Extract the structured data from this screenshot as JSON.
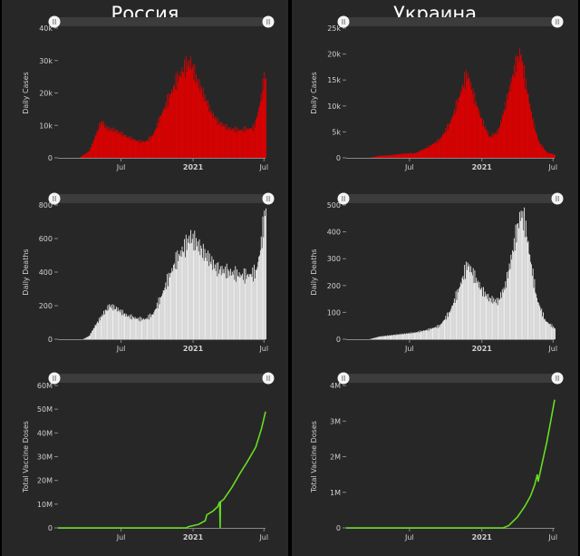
{
  "countries": [
    {
      "name": "Россия"
    },
    {
      "name": "Украина"
    }
  ],
  "x_ticks": [
    "Jul",
    "2021",
    "Jul"
  ],
  "colors": {
    "cases": "#e00000",
    "deaths": "#ececec",
    "vaccine": "#66dd22",
    "panel": "#272727",
    "slider": "#3c3c3c"
  },
  "chart_data": [
    {
      "type": "bar",
      "country": "Россия",
      "ylabel": "Daily Cases",
      "ylim": [
        0,
        40000
      ],
      "y_ticks": [
        0,
        10000,
        20000,
        30000,
        40000
      ],
      "y_tick_labels": [
        "0",
        "10k",
        "20k",
        "30k",
        "40k"
      ],
      "x_range": [
        "2020-01-22",
        "2021-07-05"
      ],
      "series": [
        {
          "values": [
            [
              "2020-03-15",
              0
            ],
            [
              "2020-04-10",
              2000
            ],
            [
              "2020-04-25",
              6500
            ],
            [
              "2020-05-08",
              10500
            ],
            [
              "2020-05-12",
              11200
            ],
            [
              "2020-05-25",
              9000
            ],
            [
              "2020-06-15",
              8500
            ],
            [
              "2020-07-15",
              6500
            ],
            [
              "2020-08-15",
              5000
            ],
            [
              "2020-09-01",
              5000
            ],
            [
              "2020-09-20",
              7000
            ],
            [
              "2020-10-10",
              13000
            ],
            [
              "2020-11-01",
              19000
            ],
            [
              "2020-11-20",
              24000
            ],
            [
              "2020-12-10",
              28000
            ],
            [
              "2020-12-24",
              29500
            ],
            [
              "2021-01-10",
              24000
            ],
            [
              "2021-01-25",
              20000
            ],
            [
              "2021-02-15",
              14000
            ],
            [
              "2021-03-05",
              11000
            ],
            [
              "2021-04-01",
              9000
            ],
            [
              "2021-05-01",
              8500
            ],
            [
              "2021-05-25",
              9000
            ],
            [
              "2021-06-05",
              9500
            ],
            [
              "2021-06-15",
              14000
            ],
            [
              "2021-06-25",
              20000
            ],
            [
              "2021-07-01",
              25000
            ],
            [
              "2021-07-05",
              24500
            ]
          ]
        }
      ]
    },
    {
      "type": "bar",
      "country": "Россия",
      "ylabel": "Daily Deaths",
      "ylim": [
        0,
        800
      ],
      "y_ticks": [
        0,
        200,
        400,
        600,
        800
      ],
      "y_tick_labels": [
        "0",
        "200",
        "400",
        "600",
        "800"
      ],
      "x_range": [
        "2020-01-22",
        "2021-07-05"
      ],
      "series": [
        {
          "values": [
            [
              "2020-03-25",
              0
            ],
            [
              "2020-04-10",
              20
            ],
            [
              "2020-04-25",
              80
            ],
            [
              "2020-05-15",
              150
            ],
            [
              "2020-06-01",
              200
            ],
            [
              "2020-06-20",
              180
            ],
            [
              "2020-07-15",
              140
            ],
            [
              "2020-08-15",
              120
            ],
            [
              "2020-09-01",
              120
            ],
            [
              "2020-09-20",
              150
            ],
            [
              "2020-10-10",
              250
            ],
            [
              "2020-11-01",
              380
            ],
            [
              "2020-11-20",
              480
            ],
            [
              "2020-12-10",
              550
            ],
            [
              "2020-12-24",
              610
            ],
            [
              "2021-01-10",
              570
            ],
            [
              "2021-01-25",
              520
            ],
            [
              "2021-02-10",
              480
            ],
            [
              "2021-03-01",
              420
            ],
            [
              "2021-04-01",
              400
            ],
            [
              "2021-05-01",
              380
            ],
            [
              "2021-05-20",
              380
            ],
            [
              "2021-06-10",
              400
            ],
            [
              "2021-06-20",
              520
            ],
            [
              "2021-07-01",
              720
            ],
            [
              "2021-07-05",
              780
            ]
          ]
        }
      ]
    },
    {
      "type": "line",
      "country": "Россия",
      "ylabel": "Total Vaccine Doses",
      "ylim": [
        0,
        60000000
      ],
      "y_ticks": [
        0,
        10000000,
        20000000,
        30000000,
        40000000,
        50000000,
        60000000
      ],
      "y_tick_labels": [
        "0",
        "10M",
        "20M",
        "30M",
        "40M",
        "50M",
        "60M"
      ],
      "x_range": [
        "2020-01-22",
        "2021-07-05"
      ],
      "series": [
        {
          "values": [
            [
              "2020-01-22",
              0
            ],
            [
              "2020-12-15",
              0
            ],
            [
              "2020-12-20",
              500000
            ],
            [
              "2021-01-15",
              1500000
            ],
            [
              "2021-02-01",
              3000000
            ],
            [
              "2021-02-05",
              5500000
            ],
            [
              "2021-02-20",
              7000000
            ],
            [
              "2021-03-05",
              9000000
            ],
            [
              "2021-03-10",
              11000000
            ],
            [
              "2021-03-11",
              0
            ],
            [
              "2021-03-12",
              11000000
            ],
            [
              "2021-03-20",
              12000000
            ],
            [
              "2021-04-10",
              17000000
            ],
            [
              "2021-05-01",
              23000000
            ],
            [
              "2021-05-20",
              28000000
            ],
            [
              "2021-06-10",
              34000000
            ],
            [
              "2021-06-25",
              42000000
            ],
            [
              "2021-07-05",
              49000000
            ]
          ]
        }
      ]
    },
    {
      "type": "bar",
      "country": "Украина",
      "ylabel": "Daily Cases",
      "ylim": [
        0,
        25000
      ],
      "y_ticks": [
        0,
        5000,
        10000,
        15000,
        20000,
        25000
      ],
      "y_tick_labels": [
        "0",
        "5k",
        "10k",
        "15k",
        "20k",
        "25k"
      ],
      "x_range": [
        "2020-01-22",
        "2021-07-05"
      ],
      "series": [
        {
          "values": [
            [
              "2020-03-20",
              0
            ],
            [
              "2020-04-15",
              400
            ],
            [
              "2020-05-15",
              500
            ],
            [
              "2020-06-15",
              800
            ],
            [
              "2020-07-15",
              900
            ],
            [
              "2020-08-15",
              2000
            ],
            [
              "2020-09-15",
              3500
            ],
            [
              "2020-10-10",
              6500
            ],
            [
              "2020-11-01",
              11000
            ],
            [
              "2020-11-15",
              14500
            ],
            [
              "2020-11-25",
              16000
            ],
            [
              "2020-12-10",
              12000
            ],
            [
              "2021-01-01",
              7000
            ],
            [
              "2021-01-20",
              4000
            ],
            [
              "2021-02-10",
              5000
            ],
            [
              "2021-03-01",
              10000
            ],
            [
              "2021-03-20",
              16000
            ],
            [
              "2021-04-01",
              19000
            ],
            [
              "2021-04-08",
              20500
            ],
            [
              "2021-04-20",
              15000
            ],
            [
              "2021-05-10",
              7000
            ],
            [
              "2021-05-25",
              3000
            ],
            [
              "2021-06-15",
              1000
            ],
            [
              "2021-07-05",
              600
            ]
          ]
        }
      ]
    },
    {
      "type": "bar",
      "country": "Украина",
      "ylabel": "Daily Deaths",
      "ylim": [
        0,
        500
      ],
      "y_ticks": [
        0,
        100,
        200,
        300,
        400,
        500
      ],
      "y_tick_labels": [
        "0",
        "100",
        "200",
        "300",
        "400",
        "500"
      ],
      "x_range": [
        "2020-01-22",
        "2021-07-05"
      ],
      "series": [
        {
          "values": [
            [
              "2020-03-20",
              0
            ],
            [
              "2020-04-15",
              10
            ],
            [
              "2020-05-15",
              15
            ],
            [
              "2020-06-15",
              20
            ],
            [
              "2020-07-15",
              25
            ],
            [
              "2020-08-15",
              35
            ],
            [
              "2020-09-15",
              50
            ],
            [
              "2020-10-10",
              100
            ],
            [
              "2020-11-01",
              180
            ],
            [
              "2020-11-15",
              240
            ],
            [
              "2020-11-25",
              280
            ],
            [
              "2020-12-10",
              240
            ],
            [
              "2021-01-01",
              180
            ],
            [
              "2021-01-20",
              150
            ],
            [
              "2021-02-10",
              140
            ],
            [
              "2021-03-01",
              200
            ],
            [
              "2021-03-20",
              330
            ],
            [
              "2021-04-01",
              420
            ],
            [
              "2021-04-10",
              470
            ],
            [
              "2021-04-20",
              430
            ],
            [
              "2021-05-05",
              280
            ],
            [
              "2021-05-20",
              150
            ],
            [
              "2021-06-10",
              70
            ],
            [
              "2021-07-05",
              40
            ]
          ]
        }
      ]
    },
    {
      "type": "line",
      "country": "Украина",
      "ylabel": "Total Vaccine Doses",
      "ylim": [
        0,
        4000000
      ],
      "y_ticks": [
        0,
        1000000,
        2000000,
        3000000,
        4000000
      ],
      "y_tick_labels": [
        "0",
        "1M",
        "2M",
        "3M",
        "4M"
      ],
      "x_range": [
        "2020-01-22",
        "2021-07-05"
      ],
      "series": [
        {
          "values": [
            [
              "2020-01-22",
              0
            ],
            [
              "2021-02-24",
              0
            ],
            [
              "2021-03-10",
              60000
            ],
            [
              "2021-04-01",
              300000
            ],
            [
              "2021-04-20",
              600000
            ],
            [
              "2021-05-05",
              900000
            ],
            [
              "2021-05-15",
              1200000
            ],
            [
              "2021-05-22",
              1500000
            ],
            [
              "2021-05-24",
              1300000
            ],
            [
              "2021-06-01",
              1700000
            ],
            [
              "2021-06-15",
              2400000
            ],
            [
              "2021-06-25",
              3000000
            ],
            [
              "2021-07-05",
              3600000
            ]
          ]
        }
      ]
    }
  ]
}
